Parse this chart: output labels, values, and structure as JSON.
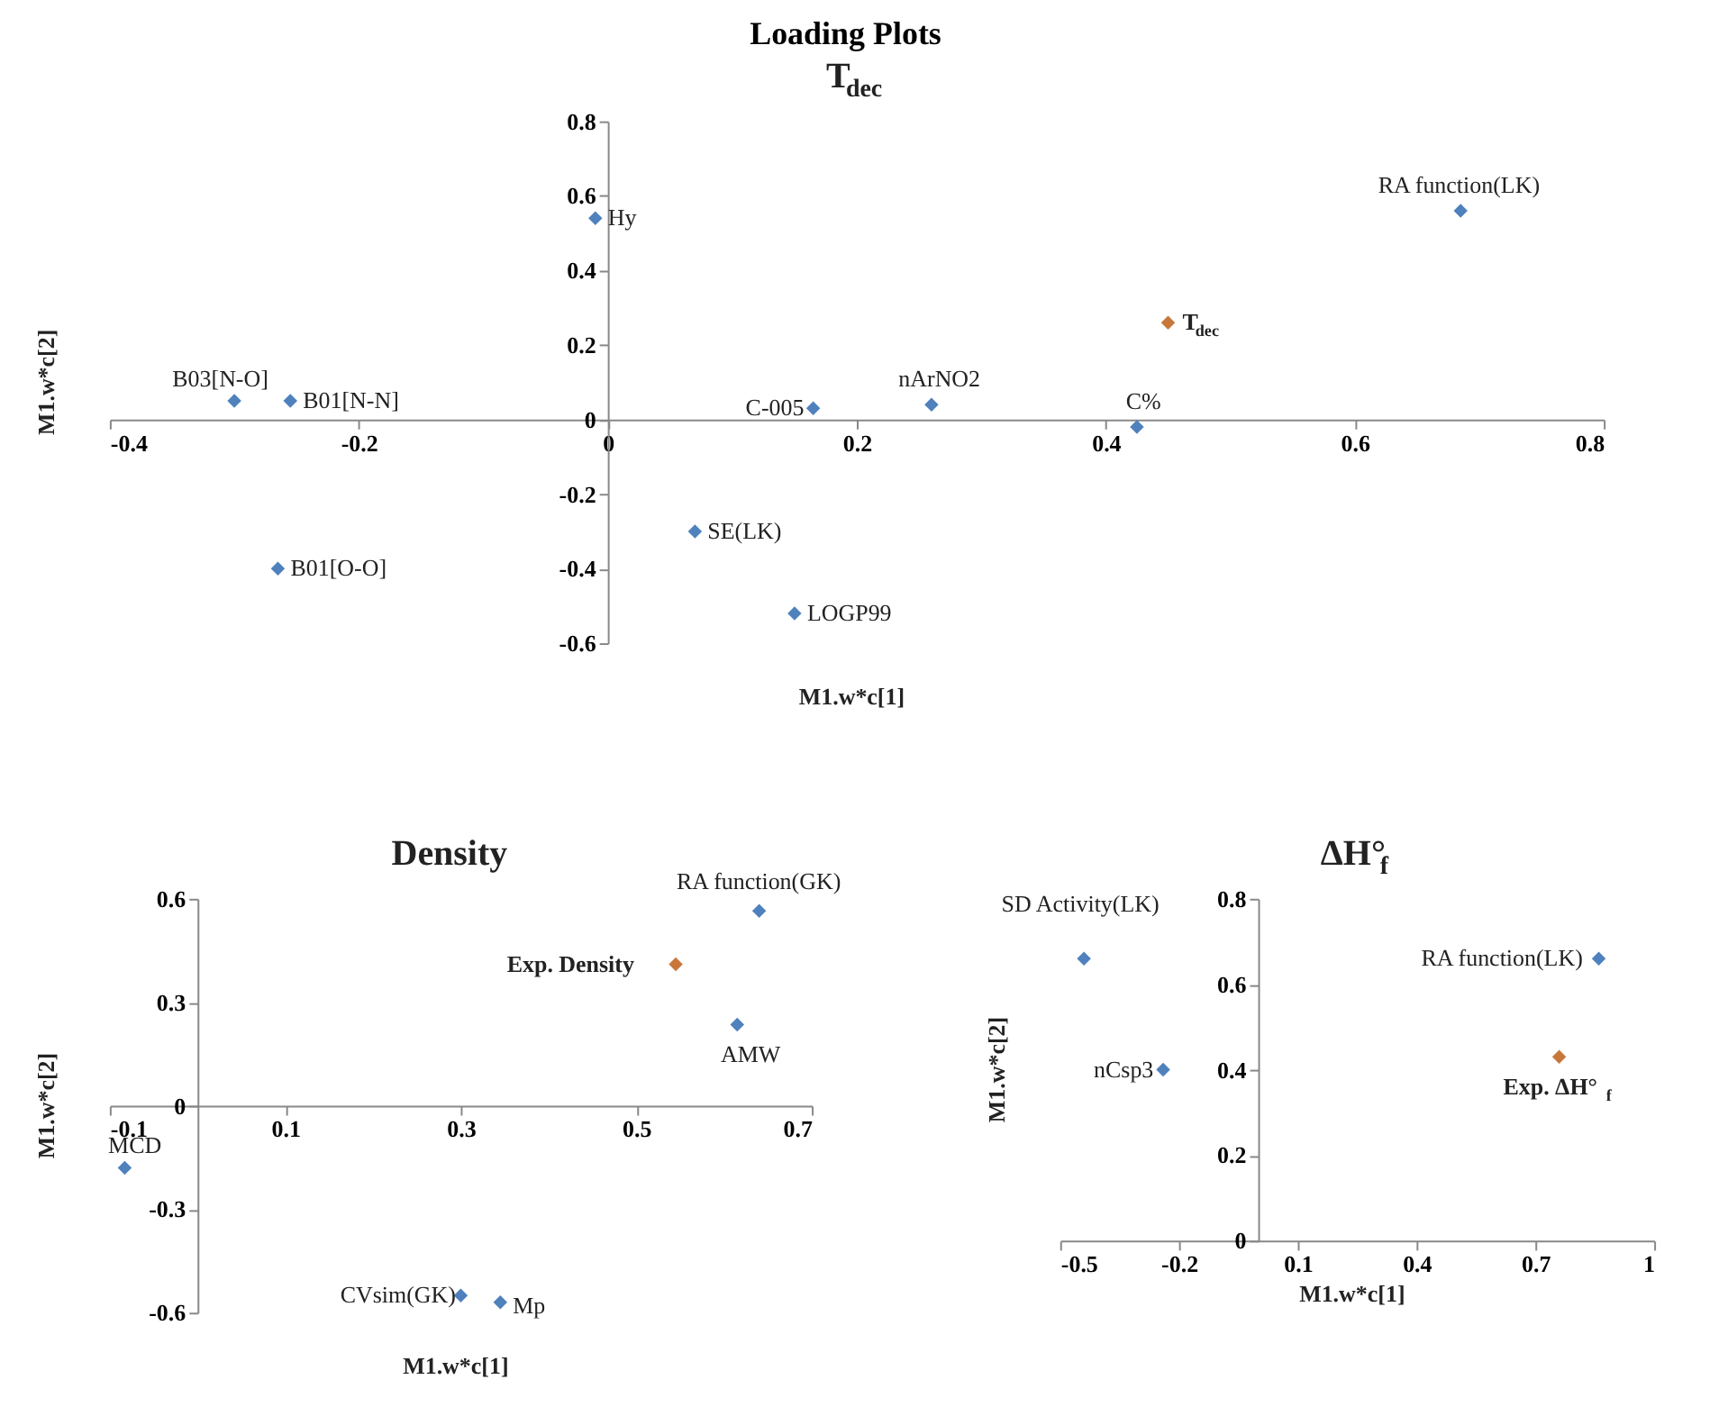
{
  "chart_data": [
    {
      "type": "scatter",
      "title": "T$_{dec}$",
      "annotations": [
        "Loading Plots"
      ],
      "xlabel": "M1.w*c[1]",
      "ylabel": "M1.w*c[2]",
      "marker": "diamond",
      "grid": false,
      "xlim": [
        -0.4,
        0.8
      ],
      "xticks": [
        -0.4,
        -0.2,
        0,
        0.2,
        0.4,
        0.6,
        0.8
      ],
      "ylim": [
        -0.6,
        0.8
      ],
      "yticks": [
        -0.6,
        -0.4,
        -0.2,
        0,
        0.2,
        0.4,
        0.6,
        0.8
      ],
      "series": [
        {
          "name": "Hy",
          "color": "#4f81bd",
          "x": [
            -0.01
          ],
          "values": [
            0.54
          ]
        },
        {
          "name": "B03[N-O]",
          "color": "#4f81bd",
          "x": [
            -0.3
          ],
          "values": [
            0.05
          ]
        },
        {
          "name": "B01[N-N]",
          "color": "#4f81bd",
          "x": [
            -0.255
          ],
          "values": [
            0.05
          ]
        },
        {
          "name": "B01[O-O]",
          "color": "#4f81bd",
          "x": [
            -0.265
          ],
          "values": [
            -0.4
          ]
        },
        {
          "name": "SE(LK)",
          "color": "#4f81bd",
          "x": [
            0.07
          ],
          "values": [
            -0.3
          ]
        },
        {
          "name": "LOGP99",
          "color": "#4f81bd",
          "x": [
            0.15
          ],
          "values": [
            -0.52
          ]
        },
        {
          "name": "C-005",
          "color": "#4f81bd",
          "x": [
            0.165
          ],
          "values": [
            0.03
          ]
        },
        {
          "name": "nArNO2",
          "color": "#4f81bd",
          "x": [
            0.26
          ],
          "values": [
            0.04
          ]
        },
        {
          "name": "C%",
          "color": "#4f81bd",
          "x": [
            0.425
          ],
          "values": [
            -0.02
          ]
        },
        {
          "name": "T$_{dec}$",
          "color": "#c8773a",
          "x": [
            0.45
          ],
          "values": [
            0.26
          ]
        },
        {
          "name": "RA function(LK)",
          "color": "#4f81bd",
          "x": [
            0.685
          ],
          "values": [
            0.56
          ]
        }
      ]
    },
    {
      "type": "scatter",
      "title": "Density",
      "xlabel": "M1.w*c[1]",
      "ylabel": "M1.w*c[2]",
      "marker": "diamond",
      "grid": false,
      "xlim": [
        -0.1,
        0.7
      ],
      "xticks": [
        -0.1,
        0.1,
        0.3,
        0.5,
        0.7
      ],
      "ylim": [
        -0.6,
        0.6
      ],
      "yticks": [
        -0.6,
        -0.3,
        0,
        0.3,
        0.6
      ],
      "series": [
        {
          "name": "MCD",
          "color": "#4f81bd",
          "x": [
            -0.083
          ],
          "values": [
            -0.18
          ]
        },
        {
          "name": "CVsim(GK)",
          "color": "#4f81bd",
          "x": [
            0.3
          ],
          "values": [
            -0.55
          ]
        },
        {
          "name": "Mp",
          "color": "#4f81bd",
          "x": [
            0.345
          ],
          "values": [
            -0.57
          ]
        },
        {
          "name": "Exp. Density",
          "color": "#c8773a",
          "x": [
            0.545
          ],
          "values": [
            0.41
          ]
        },
        {
          "name": "AMW",
          "color": "#4f81bd",
          "x": [
            0.615
          ],
          "values": [
            0.235
          ]
        },
        {
          "name": "RA function(GK)",
          "color": "#4f81bd",
          "x": [
            0.64
          ],
          "values": [
            0.565
          ]
        }
      ]
    },
    {
      "type": "scatter",
      "title": "ΔH°$_{f}$",
      "xlabel": "M1.w*c[1]",
      "ylabel": "M1.w*c[2]",
      "marker": "diamond",
      "grid": false,
      "xlim": [
        -0.5,
        1
      ],
      "xticks": [
        -0.5,
        -0.2,
        0.1,
        0.4,
        0.7,
        1
      ],
      "ylim": [
        0,
        0.8
      ],
      "yticks": [
        0,
        0.2,
        0.4,
        0.6,
        0.8
      ],
      "series": [
        {
          "name": "SD Activity(LK)",
          "color": "#4f81bd",
          "x": [
            -0.44
          ],
          "values": [
            0.66
          ]
        },
        {
          "name": "nCsp3",
          "color": "#4f81bd",
          "x": [
            -0.24
          ],
          "values": [
            0.4
          ]
        },
        {
          "name": "RA function(LK)",
          "color": "#4f81bd",
          "x": [
            0.86
          ],
          "values": [
            0.66
          ]
        },
        {
          "name": "Exp. ΔH°$_{f}$",
          "color": "#c8773a",
          "x": [
            0.76
          ],
          "values": [
            0.43
          ]
        }
      ]
    }
  ]
}
